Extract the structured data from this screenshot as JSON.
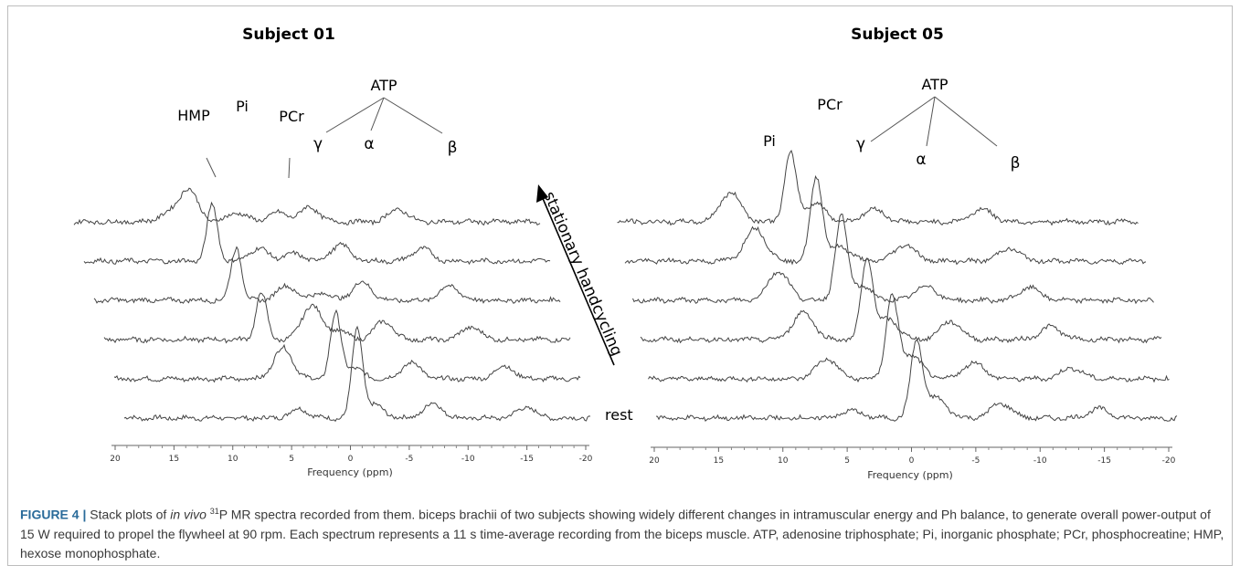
{
  "figure": {
    "panels": [
      {
        "title": "Subject 01",
        "peak_labels": [
          "HMP",
          "Pi",
          "PCr",
          "γ",
          "α",
          "β"
        ],
        "group_label": "ATP"
      },
      {
        "title": "Subject 05",
        "peak_labels": [
          "Pi",
          "PCr",
          "γ",
          "α",
          "β"
        ],
        "group_label": "ATP"
      }
    ],
    "arrow_label": "stationary handcycling",
    "rest_label": "rest",
    "axis": {
      "ticks": [
        "20",
        "15",
        "10",
        "5",
        "0",
        "-5",
        "-10",
        "-15",
        "-20"
      ],
      "label": "Frequency (ppm)"
    }
  },
  "caption": {
    "label": "FIGURE 4 |",
    "text_a": " Stack plots of ",
    "italic": "in vivo",
    "sup": "31",
    "text_b": "P MR spectra recorded from them. biceps brachii of two subjects showing widely different changes in intramuscular energy and Ph balance, to generate overall power-output of 15 W required to propel the flywheel at 90 rpm. Each spectrum represents a 11 s time-average recording from the biceps muscle. ATP, adenosine triphosphate; Pi, inorganic phosphate; PCr, phosphocreatine; HMP, hexose monophosphate."
  },
  "chart_data": [
    {
      "type": "line",
      "title": "Subject 01",
      "xlabel": "Frequency (ppm)",
      "xlim": [
        20,
        -20
      ],
      "x_reversed": true,
      "series_order": "bottom (rest) to top",
      "series": [
        {
          "peaks": [
            {
              "x": 5.0,
              "h": 10
            },
            {
              "x": 0.0,
              "h": 96
            },
            {
              "x": -1.5,
              "h": 14
            },
            {
              "x": -6.5,
              "h": 16
            },
            {
              "x": -14.5,
              "h": 12
            }
          ]
        },
        {
          "peaks": [
            {
              "x": 5.5,
              "h": 34
            },
            {
              "x": 1.0,
              "h": 70
            },
            {
              "x": -0.5,
              "h": 12
            },
            {
              "x": -5.5,
              "h": 18
            },
            {
              "x": -13.5,
              "h": 14
            }
          ]
        },
        {
          "peaks": [
            {
              "x": 6.5,
              "h": 52
            },
            {
              "x": 2.2,
              "h": 38
            },
            {
              "x": 0.0,
              "h": 10
            },
            {
              "x": -4.0,
              "h": 20
            },
            {
              "x": -11.5,
              "h": 14
            }
          ]
        },
        {
          "peaks": [
            {
              "x": 7.8,
              "h": 58
            },
            {
              "x": 3.5,
              "h": 16
            },
            {
              "x": 0.5,
              "h": 8
            },
            {
              "x": -3.0,
              "h": 20
            },
            {
              "x": -10.5,
              "h": 16
            }
          ]
        },
        {
          "peaks": [
            {
              "x": 9.0,
              "h": 62
            },
            {
              "x": 5.0,
              "h": 14
            },
            {
              "x": 2.0,
              "h": 8
            },
            {
              "x": -2.0,
              "h": 18
            },
            {
              "x": -9.0,
              "h": 14
            }
          ]
        },
        {
          "peaks": [
            {
              "x": 12.0,
              "h": 8
            },
            {
              "x": 10.2,
              "h": 36
            },
            {
              "x": 6.0,
              "h": 10
            },
            {
              "x": 2.5,
              "h": 10
            },
            {
              "x": -0.2,
              "h": 16
            },
            {
              "x": -7.8,
              "h": 14
            }
          ]
        }
      ]
    },
    {
      "type": "line",
      "title": "Subject 05",
      "xlabel": "Frequency (ppm)",
      "xlim": [
        20,
        -20
      ],
      "x_reversed": true,
      "series_order": "bottom (rest) to top",
      "series": [
        {
          "peaks": [
            {
              "x": 5.0,
              "h": 8
            },
            {
              "x": 0.0,
              "h": 82
            },
            {
              "x": -1.5,
              "h": 22
            },
            {
              "x": -6.5,
              "h": 16
            },
            {
              "x": -14.0,
              "h": 10
            }
          ]
        },
        {
          "peaks": [
            {
              "x": 6.3,
              "h": 22
            },
            {
              "x": 1.3,
              "h": 88
            },
            {
              "x": -0.2,
              "h": 26
            },
            {
              "x": -5.0,
              "h": 18
            },
            {
              "x": -12.5,
              "h": 12
            }
          ]
        },
        {
          "peaks": [
            {
              "x": 7.5,
              "h": 30
            },
            {
              "x": 2.6,
              "h": 86
            },
            {
              "x": 1.0,
              "h": 22
            },
            {
              "x": -3.8,
              "h": 20
            },
            {
              "x": -11.5,
              "h": 14
            }
          ]
        },
        {
          "peaks": [
            {
              "x": 8.8,
              "h": 32
            },
            {
              "x": 4.0,
              "h": 90
            },
            {
              "x": 2.5,
              "h": 16
            },
            {
              "x": -2.5,
              "h": 16
            },
            {
              "x": -10.5,
              "h": 14
            }
          ]
        },
        {
          "peaks": [
            {
              "x": 10.0,
              "h": 36
            },
            {
              "x": 5.3,
              "h": 92
            },
            {
              "x": 3.5,
              "h": 16
            },
            {
              "x": -1.5,
              "h": 18
            },
            {
              "x": -9.5,
              "h": 14
            }
          ]
        },
        {
          "peaks": [
            {
              "x": 11.3,
              "h": 32
            },
            {
              "x": 6.7,
              "h": 74
            },
            {
              "x": 4.8,
              "h": 20
            },
            {
              "x": 0.3,
              "h": 14
            },
            {
              "x": -8.0,
              "h": 14
            }
          ]
        }
      ]
    }
  ]
}
